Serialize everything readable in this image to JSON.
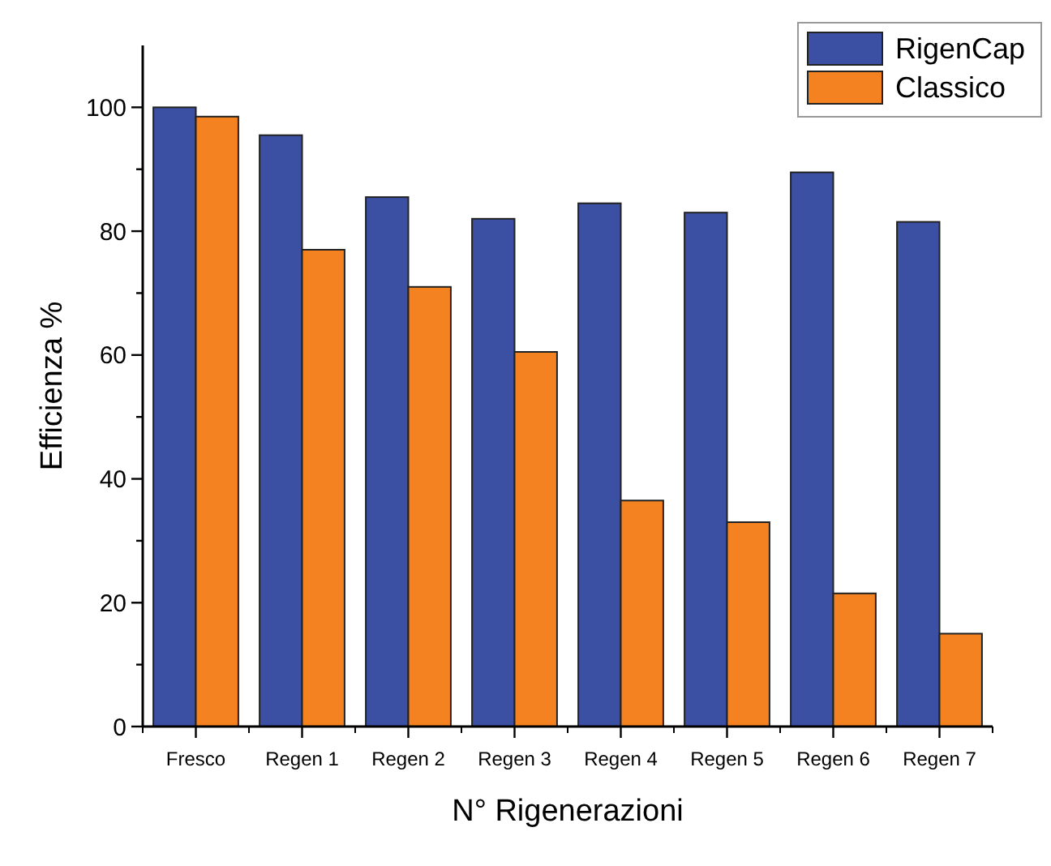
{
  "chart_data": {
    "type": "bar",
    "xlabel": "N° Rigenerazioni",
    "ylabel": "Efficienza %",
    "categories": [
      "Fresco",
      "Regen 1",
      "Regen 2",
      "Regen 3",
      "Regen 4",
      "Regen 5",
      "Regen 6",
      "Regen 7"
    ],
    "series": [
      {
        "name": "RigenCap",
        "color": "#3b4fa3",
        "values": [
          100,
          95.5,
          85.5,
          82,
          84.5,
          83,
          89.5,
          81.5
        ]
      },
      {
        "name": "Classico",
        "color": "#f58220",
        "values": [
          98.5,
          77,
          71,
          60.5,
          36.5,
          33,
          21.5,
          15
        ]
      }
    ],
    "ylim": [
      0,
      110
    ],
    "yticks": [
      0,
      {
        "value": 10,
        "label": null
      },
      20,
      {
        "value": 30,
        "label": null
      },
      40,
      {
        "value": 50,
        "label": null
      },
      60,
      {
        "value": 70,
        "label": null
      },
      80,
      {
        "value": 90,
        "label": null
      },
      100
    ],
    "grid": false,
    "legend": "top right"
  }
}
